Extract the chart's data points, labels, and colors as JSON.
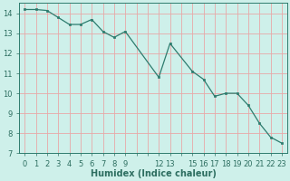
{
  "x": [
    0,
    1,
    2,
    3,
    4,
    5,
    6,
    7,
    8,
    9,
    12,
    13,
    15,
    16,
    17,
    18,
    19,
    20,
    21,
    22,
    23
  ],
  "y": [
    14.2,
    14.2,
    14.15,
    13.8,
    13.45,
    13.45,
    13.7,
    13.1,
    12.8,
    13.1,
    10.8,
    12.5,
    11.1,
    10.7,
    9.85,
    10.0,
    10.0,
    9.4,
    8.5,
    7.8,
    7.5
  ],
  "line_color": "#2d7c6e",
  "marker_color": "#2d7c6e",
  "bg_color": "#cef0ea",
  "grid_major_color": "#e8a8a8",
  "grid_minor_color": "#dde8e6",
  "xlabel": "Humidex (Indice chaleur)",
  "xlim": [
    -0.5,
    23.5
  ],
  "ylim": [
    7,
    14.55
  ],
  "yticks": [
    7,
    8,
    9,
    10,
    11,
    12,
    13,
    14
  ],
  "tick_fontsize": 6,
  "label_fontsize": 7
}
